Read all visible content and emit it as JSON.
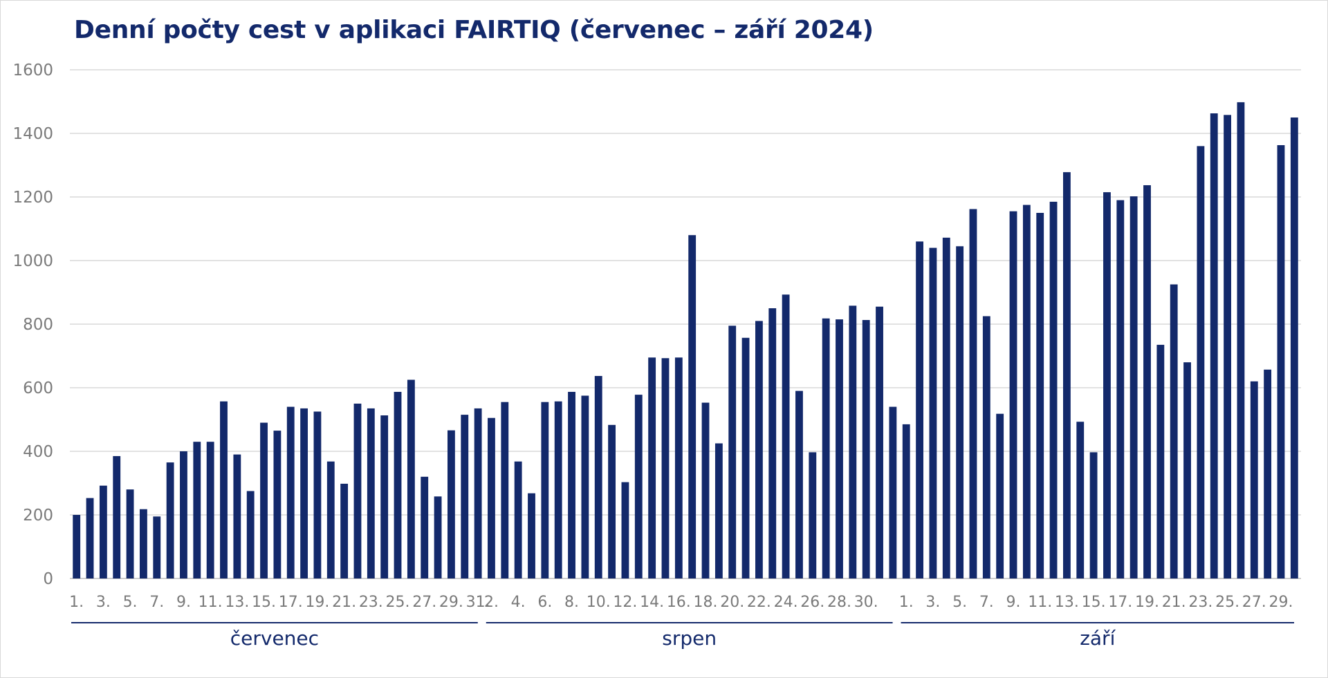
{
  "chart_data": {
    "type": "bar",
    "title": "Denní počty cest v aplikaci FAIRTIQ (červenec – září 2024)",
    "xlabel": "",
    "ylabel": "",
    "ylim": [
      0,
      1600
    ],
    "yticks": [
      0,
      200,
      400,
      600,
      800,
      1000,
      1200,
      1400,
      1600
    ],
    "grid": true,
    "bar_color": "#13296b",
    "months": [
      {
        "name": "červenec",
        "tick_labels": [
          "1.",
          "3.",
          "5.",
          "7.",
          "9.",
          "11.",
          "13.",
          "15.",
          "17.",
          "19.",
          "21.",
          "23.",
          "25.",
          "27.",
          "29.",
          "31."
        ],
        "values": [
          200,
          253,
          292,
          385,
          280,
          218,
          195,
          365,
          400,
          430,
          430,
          557,
          390,
          275,
          490,
          465,
          540,
          535,
          525,
          368,
          298,
          550,
          535,
          513,
          587,
          625,
          320,
          258,
          466,
          515,
          535
        ]
      },
      {
        "name": "srpen",
        "tick_labels": [
          "2.",
          "4.",
          "6.",
          "8.",
          "10.",
          "12.",
          "14.",
          "16.",
          "18.",
          "20.",
          "22.",
          "24.",
          "26.",
          "28.",
          "30."
        ],
        "values": [
          505,
          555,
          368,
          268,
          555,
          557,
          587,
          575,
          637,
          483,
          303,
          578,
          695,
          693,
          695,
          1080,
          553,
          425,
          795,
          757,
          810,
          850,
          893,
          590,
          397,
          818,
          815,
          858,
          813,
          855,
          540
        ]
      },
      {
        "name": "září",
        "tick_labels": [
          "1.",
          "3.",
          "5.",
          "7.",
          "9.",
          "11.",
          "13.",
          "15.",
          "17.",
          "19.",
          "21.",
          "23.",
          "25.",
          "27.",
          "29."
        ],
        "values": [
          485,
          1060,
          1040,
          1072,
          1045,
          1162,
          825,
          518,
          1155,
          1175,
          1150,
          1185,
          1278,
          493,
          397,
          1215,
          1190,
          1202,
          1237,
          735,
          925,
          680,
          1360,
          1463,
          1458,
          1498,
          620,
          657,
          1363,
          1450
        ]
      }
    ]
  }
}
